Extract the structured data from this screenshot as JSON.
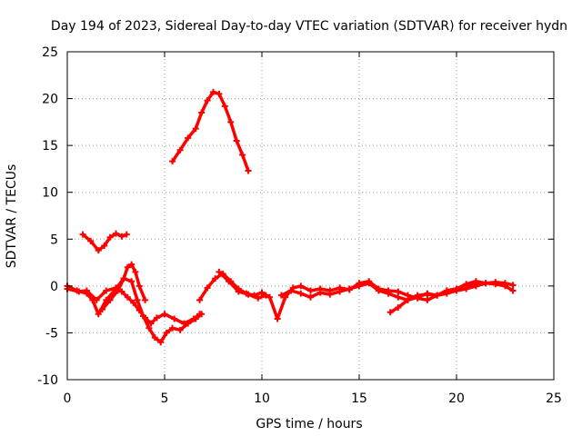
{
  "chart_data": {
    "type": "line",
    "title": "Day 194 of 2023, Sidereal Day-to-day VTEC variation (SDTVAR) for receiver hydn",
    "xlabel": "GPS time / hours",
    "ylabel": "SDTVAR / TECUs",
    "xlim": [
      0,
      25
    ],
    "ylim": [
      -10,
      25
    ],
    "xticks": [
      "0",
      "5",
      "10",
      "15",
      "20",
      "25"
    ],
    "yticks": [
      "-10",
      "-5",
      "0",
      "5",
      "10",
      "15",
      "20",
      "25"
    ],
    "grid": true,
    "color": "#ff0000",
    "series": [
      {
        "name": "satellite-arc-1",
        "x": [
          0.0,
          0.5,
          1.0,
          1.3,
          1.6,
          2.0,
          2.5,
          2.9,
          3.3,
          3.6,
          3.9,
          4.2,
          4.5,
          4.8,
          5.1,
          5.4,
          5.8,
          6.2,
          6.6,
          6.9
        ],
        "values": [
          0.0,
          -0.5,
          -0.8,
          -1.5,
          -3.0,
          -1.5,
          -0.3,
          0.8,
          0.5,
          -1.5,
          -3.2,
          -4.5,
          -5.5,
          -6.0,
          -5.0,
          -4.5,
          -4.7,
          -4.0,
          -3.5,
          -3.0
        ]
      },
      {
        "name": "satellite-arc-2",
        "x": [
          0.0,
          0.6,
          1.0,
          1.5,
          2.0,
          2.5,
          2.8,
          3.1,
          3.4,
          3.7,
          4.0,
          4.3,
          4.6,
          5.0,
          5.5,
          6.0,
          6.5,
          6.8
        ],
        "values": [
          -0.3,
          -0.6,
          -0.5,
          -1.5,
          -0.5,
          -0.2,
          -0.6,
          -1.2,
          -1.8,
          -2.6,
          -3.4,
          -4.0,
          -3.4,
          -3.0,
          -3.5,
          -4.0,
          -3.5,
          -3.0
        ]
      },
      {
        "name": "satellite-arc-3",
        "x": [
          1.8,
          2.2,
          2.6,
          2.9,
          3.1,
          3.3,
          3.5,
          3.7,
          4.0
        ],
        "values": [
          -2.5,
          -1.5,
          -0.5,
          0.8,
          2.0,
          2.3,
          1.5,
          0.0,
          -1.5
        ]
      },
      {
        "name": "satellite-arc-4",
        "x": [
          0.8,
          1.2,
          1.6,
          1.9,
          2.2,
          2.5,
          2.8,
          3.05
        ],
        "values": [
          5.5,
          4.8,
          3.8,
          4.3,
          5.2,
          5.6,
          5.3,
          5.5
        ]
      },
      {
        "name": "satellite-arc-5",
        "x": [
          5.4,
          5.8,
          6.2,
          6.6,
          6.9,
          7.2,
          7.5,
          7.8,
          8.1,
          8.4,
          8.7,
          9.0,
          9.3
        ],
        "values": [
          13.3,
          14.5,
          15.8,
          16.8,
          18.5,
          19.8,
          20.7,
          20.5,
          19.2,
          17.5,
          15.5,
          14.0,
          12.3
        ]
      },
      {
        "name": "satellite-arc-6",
        "x": [
          6.8,
          7.2,
          7.6,
          8.0,
          8.4,
          8.8,
          9.2,
          9.6,
          10.0,
          10.4,
          10.8,
          11.2,
          11.6,
          12.0,
          12.5,
          13.0,
          13.5,
          14.0,
          14.5,
          15.0,
          15.5,
          16.0
        ],
        "values": [
          -1.5,
          -0.2,
          0.8,
          1.3,
          0.5,
          -0.3,
          -0.8,
          -1.0,
          -0.7,
          -1.2,
          -3.5,
          -1.2,
          -0.2,
          0.0,
          -0.5,
          -0.3,
          -0.5,
          -0.2,
          -0.4,
          0.3,
          0.5,
          -0.3
        ]
      },
      {
        "name": "satellite-arc-7",
        "x": [
          7.8,
          8.3,
          8.8,
          9.3,
          9.8,
          10.2
        ],
        "values": [
          1.5,
          0.5,
          -0.6,
          -0.9,
          -1.3,
          -1.0
        ]
      },
      {
        "name": "satellite-arc-8",
        "x": [
          11.0,
          11.5,
          12.0,
          12.5,
          13.0,
          13.5,
          14.0,
          14.5,
          15.0,
          15.5,
          16.0,
          16.5,
          17.0,
          17.5,
          18.0,
          18.5,
          19.0,
          19.5,
          20.0,
          20.5,
          21.0
        ],
        "values": [
          -1.0,
          -0.5,
          -0.8,
          -1.2,
          -0.7,
          -0.9,
          -0.6,
          -0.3,
          0.0,
          0.3,
          -0.5,
          -0.8,
          -1.2,
          -1.5,
          -1.2,
          -0.8,
          -1.0,
          -0.5,
          -0.3,
          0.0,
          0.2
        ]
      },
      {
        "name": "satellite-arc-9",
        "x": [
          16.6,
          17.0,
          17.5,
          18.0,
          18.5,
          19.0,
          19.5,
          20.0,
          20.5,
          21.0,
          21.5,
          22.0,
          22.5,
          22.9
        ],
        "values": [
          -2.8,
          -2.3,
          -1.5,
          -1.0,
          -0.9,
          -1.0,
          -0.5,
          -0.3,
          0.2,
          0.5,
          0.3,
          0.2,
          0.0,
          -0.5
        ]
      },
      {
        "name": "satellite-arc-10",
        "x": [
          16.0,
          16.5,
          17.0,
          17.5,
          18.0,
          18.5,
          19.0,
          19.5,
          20.0,
          20.5,
          21.0,
          21.5,
          22.0,
          22.5,
          22.9
        ],
        "values": [
          -0.3,
          -0.5,
          -0.6,
          -1.0,
          -1.3,
          -1.5,
          -1.0,
          -0.8,
          -0.5,
          -0.3,
          0.0,
          0.3,
          0.4,
          0.3,
          0.1
        ]
      }
    ]
  }
}
